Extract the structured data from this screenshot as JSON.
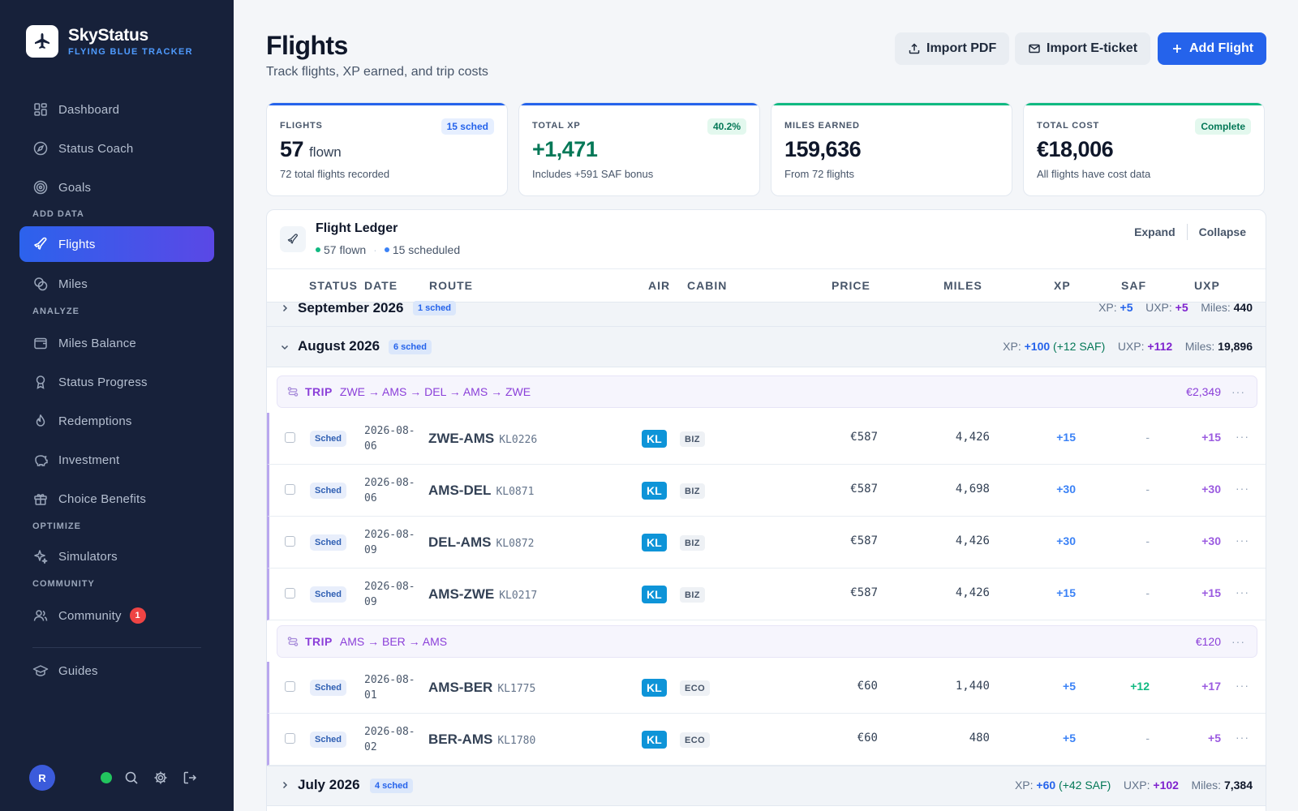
{
  "app": {
    "name": "SkyStatus",
    "tagline": "FLYING BLUE TRACKER"
  },
  "sidebar": {
    "items": [
      {
        "label": "Dashboard",
        "icon": "dashboard-icon"
      },
      {
        "label": "Status Coach",
        "icon": "compass-icon"
      },
      {
        "label": "Goals",
        "icon": "target-icon"
      },
      {
        "label": "Flights",
        "icon": "plane-icon",
        "active": true
      },
      {
        "label": "Miles",
        "icon": "coins-icon"
      },
      {
        "label": "Miles Balance",
        "icon": "wallet-icon"
      },
      {
        "label": "Status Progress",
        "icon": "award-icon"
      },
      {
        "label": "Redemptions",
        "icon": "flame-icon"
      },
      {
        "label": "Investment",
        "icon": "piggy-bank-icon"
      },
      {
        "label": "Choice Benefits",
        "icon": "gift-icon"
      },
      {
        "label": "Simulators",
        "icon": "sparkles-icon"
      },
      {
        "label": "Community",
        "icon": "users-icon",
        "badge": "1"
      },
      {
        "label": "Guides",
        "icon": "graduation-cap-icon"
      }
    ],
    "sections": {
      "add_data": "ADD DATA",
      "analyze": "ANALYZE",
      "optimize": "OPTIMIZE",
      "community": "COMMUNITY"
    },
    "user_initial": "R"
  },
  "header": {
    "title": "Flights",
    "subtitle": "Track flights, XP earned, and trip costs",
    "import_pdf": "Import PDF",
    "import_eticket": "Import E-ticket",
    "add_flight": "Add Flight"
  },
  "stats": [
    {
      "label": "FLIGHTS",
      "pill": "15 sched",
      "value": "57",
      "unit": "flown",
      "note": "72 total flights recorded"
    },
    {
      "label": "TOTAL XP",
      "pill": "40.2%",
      "value": "+1,471",
      "note": "Includes +591 SAF bonus"
    },
    {
      "label": "MILES EARNED",
      "value": "159,636",
      "note": "From 72 flights"
    },
    {
      "label": "TOTAL COST",
      "pill": "Complete",
      "value": "€18,006",
      "note": "All flights have cost data"
    }
  ],
  "ledger": {
    "title": "Flight Ledger",
    "flown": "57 flown",
    "scheduled": "15 scheduled",
    "expand": "Expand",
    "collapse": "Collapse",
    "columns": [
      "STATUS",
      "DATE",
      "ROUTE",
      "AIR",
      "CABIN",
      "PRICE",
      "MILES",
      "XP",
      "SAF",
      "UXP"
    ],
    "sep": "·",
    "stat_labels": {
      "xp": "XP:",
      "uxp": "UXP:",
      "miles": "Miles:"
    },
    "trip_label": "TRIP",
    "months": [
      {
        "name": "September 2026",
        "pill": "1 sched",
        "xp": "+5",
        "uxp": "+5",
        "miles": "440"
      },
      {
        "name": "August 2026",
        "pill": "6 sched",
        "xp": "+100",
        "saf": "(+12 SAF)",
        "uxp": "+112",
        "miles": "19,896"
      },
      {
        "name": "July 2026",
        "pill": "4 sched",
        "xp": "+60",
        "saf": "(+42 SAF)",
        "uxp": "+102",
        "miles": "7,384"
      }
    ],
    "trips": [
      {
        "route": "ZWE → AMS → DEL → AMS → ZWE",
        "price": "€2,349"
      },
      {
        "route": "AMS → BER → AMS",
        "price": "€120"
      }
    ],
    "flights": [
      {
        "status": "Sched",
        "date_a": "2026-08-",
        "date_b": "06",
        "route": "ZWE-AMS",
        "flight": "KL0226",
        "air": "KL",
        "cabin": "BIZ",
        "price": "€587",
        "miles": "4,426",
        "xp": "+15",
        "saf": "-",
        "uxp": "+15"
      },
      {
        "status": "Sched",
        "date_a": "2026-08-",
        "date_b": "06",
        "route": "AMS-DEL",
        "flight": "KL0871",
        "air": "KL",
        "cabin": "BIZ",
        "price": "€587",
        "miles": "4,698",
        "xp": "+30",
        "saf": "-",
        "uxp": "+30"
      },
      {
        "status": "Sched",
        "date_a": "2026-08-",
        "date_b": "09",
        "route": "DEL-AMS",
        "flight": "KL0872",
        "air": "KL",
        "cabin": "BIZ",
        "price": "€587",
        "miles": "4,426",
        "xp": "+30",
        "saf": "-",
        "uxp": "+30"
      },
      {
        "status": "Sched",
        "date_a": "2026-08-",
        "date_b": "09",
        "route": "AMS-ZWE",
        "flight": "KL0217",
        "air": "KL",
        "cabin": "BIZ",
        "price": "€587",
        "miles": "4,426",
        "xp": "+15",
        "saf": "-",
        "uxp": "+15"
      },
      {
        "status": "Sched",
        "date_a": "2026-08-",
        "date_b": "01",
        "route": "AMS-BER",
        "flight": "KL1775",
        "air": "KL",
        "cabin": "ECO",
        "price": "€60",
        "miles": "1,440",
        "xp": "+5",
        "saf": "+12",
        "uxp": "+17"
      },
      {
        "status": "Sched",
        "date_a": "2026-08-",
        "date_b": "02",
        "route": "BER-AMS",
        "flight": "KL1780",
        "air": "KL",
        "cabin": "ECO",
        "price": "€60",
        "miles": "480",
        "xp": "+5",
        "saf": "-",
        "uxp": "+5"
      }
    ]
  },
  "colors": {
    "primary": "#2563eb",
    "sidebar_bg": "#17213a",
    "trip_purple": "#8b3fd9",
    "klm_blue": "#0e94d8",
    "online": "#22c55e"
  }
}
